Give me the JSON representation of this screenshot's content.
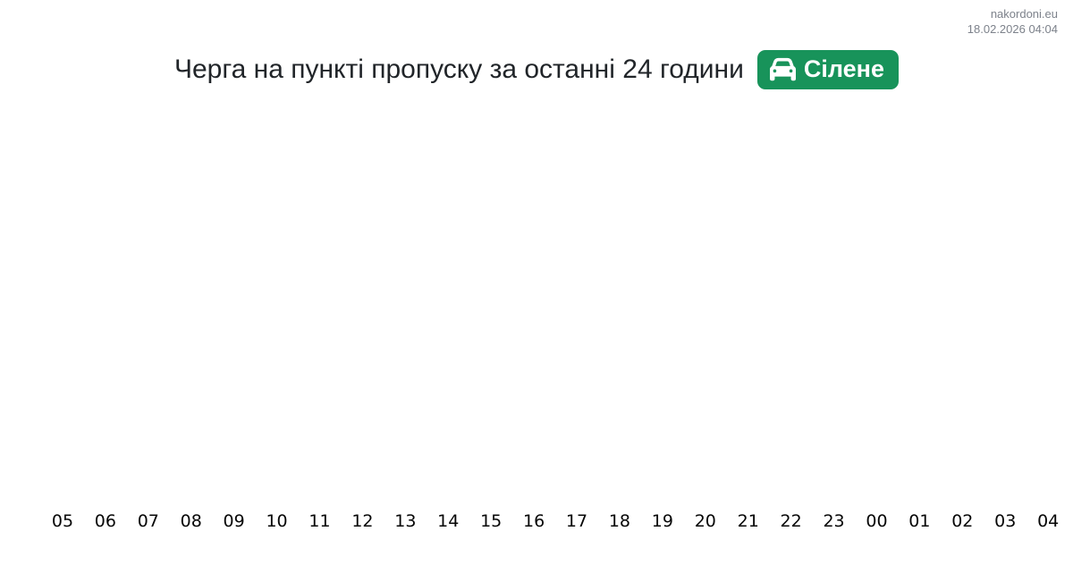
{
  "header": {
    "site": "nakordoni.eu",
    "timestamp": "18.02.2026 04:04"
  },
  "title": {
    "text": "Черга на пункті пропуску за останні 24 години",
    "badge": {
      "label": "Сілене",
      "icon": "car-icon",
      "background_color": "#18935a",
      "text_color": "#ffffff"
    }
  },
  "chart_data": {
    "type": "bar",
    "title": "Черга на пункті пропуску за останні 24 години",
    "categories": [
      "05",
      "06",
      "07",
      "08",
      "09",
      "10",
      "11",
      "12",
      "13",
      "14",
      "15",
      "16",
      "17",
      "18",
      "19",
      "20",
      "21",
      "22",
      "23",
      "00",
      "01",
      "02",
      "03",
      "04"
    ],
    "series": [],
    "xlabel": "",
    "ylabel": "",
    "grid": false,
    "legend": false,
    "plot_area_empty": true
  }
}
